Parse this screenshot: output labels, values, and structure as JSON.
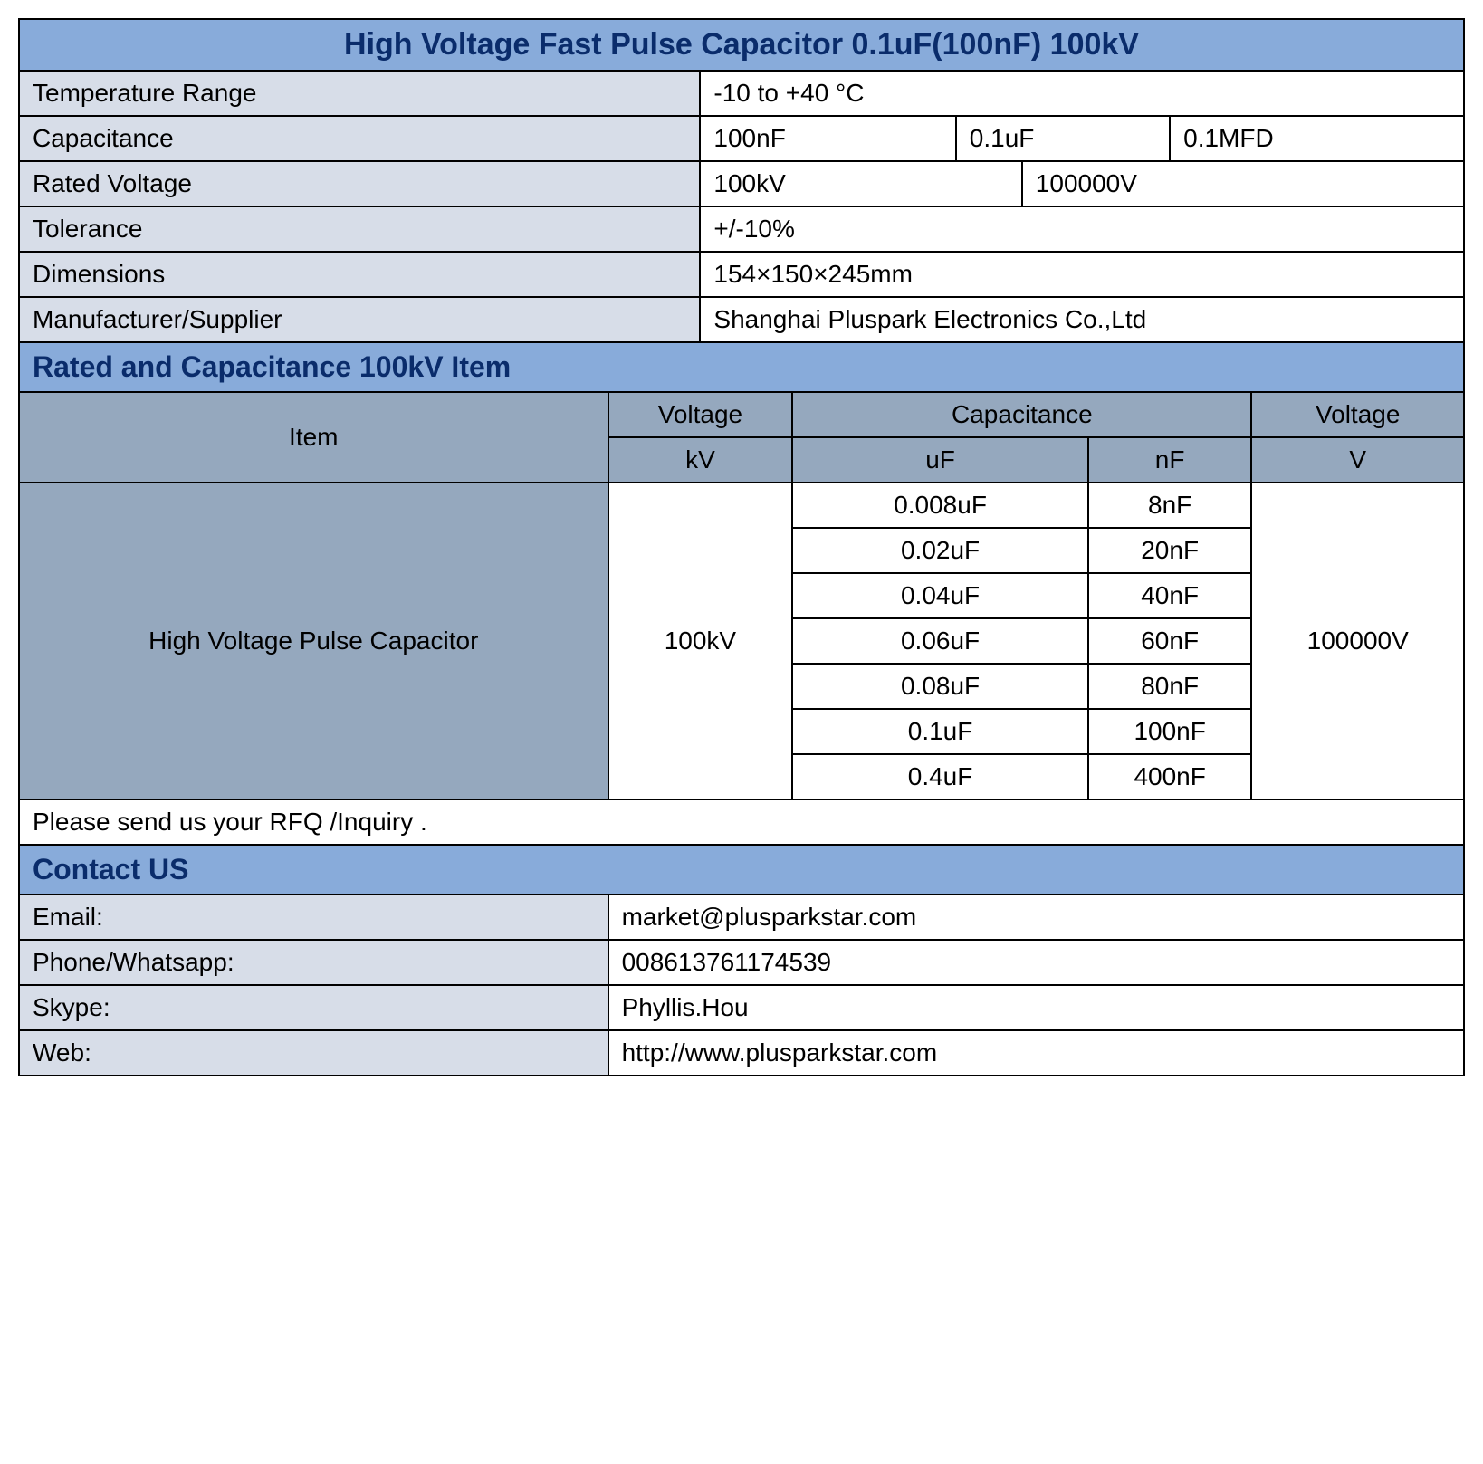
{
  "title": "High Voltage Fast Pulse Capacitor 0.1uF(100nF) 100kV",
  "specs": {
    "temp_label": "Temperature Range",
    "temp_value": "-10 to +40 °C",
    "cap_label": "Capacitance",
    "cap_v1": "100nF",
    "cap_v2": "0.1uF",
    "cap_v3": "0.1MFD",
    "voltage_label": "Rated Voltage",
    "voltage_v1": "100kV",
    "voltage_v2": "100000V",
    "tolerance_label": "Tolerance",
    "tolerance_value": "+/-10%",
    "dim_label": "Dimensions",
    "dim_value": "154×150×245mm",
    "mfr_label": "Manufacturer/Supplier",
    "mfr_value": "Shanghai Pluspark Electronics Co.,Ltd"
  },
  "section2_title": "Rated and Capacitance 100kV Item",
  "headers": {
    "item": "Item",
    "voltage": "Voltage",
    "capacitance": "Capacitance",
    "voltage2": "Voltage",
    "kv": "kV",
    "uf": "uF",
    "nf": "nF",
    "v": "V"
  },
  "item_name": "High Voltage Pulse Capacitor",
  "item_kv": "100kV",
  "item_v": "100000V",
  "cap_rows": [
    {
      "uf": "0.008uF",
      "nf": "8nF"
    },
    {
      "uf": "0.02uF",
      "nf": "20nF"
    },
    {
      "uf": "0.04uF",
      "nf": "40nF"
    },
    {
      "uf": "0.06uF",
      "nf": "60nF"
    },
    {
      "uf": "0.08uF",
      "nf": "80nF"
    },
    {
      "uf": "0.1uF",
      "nf": "100nF"
    },
    {
      "uf": "0.4uF",
      "nf": "400nF"
    }
  ],
  "rfq_note": "Please send us your RFQ /Inquiry .",
  "contact_title": "Contact US",
  "contact": {
    "email_label": "Email:",
    "email_value": "market@plusparkstar.com",
    "phone_label": "Phone/Whatsapp:",
    "phone_value": "008613761174539",
    "skype_label": "Skype:",
    "skype_value": "Phyllis.Hou",
    "web_label": "Web:",
    "web_value": "http://www.plusparkstar.com"
  },
  "colors": {
    "header_bg": "#88abda",
    "header_fg": "#0a2c6b",
    "label_bg": "#d7dde8",
    "subheader_bg": "#95a8be",
    "border": "#000000"
  }
}
